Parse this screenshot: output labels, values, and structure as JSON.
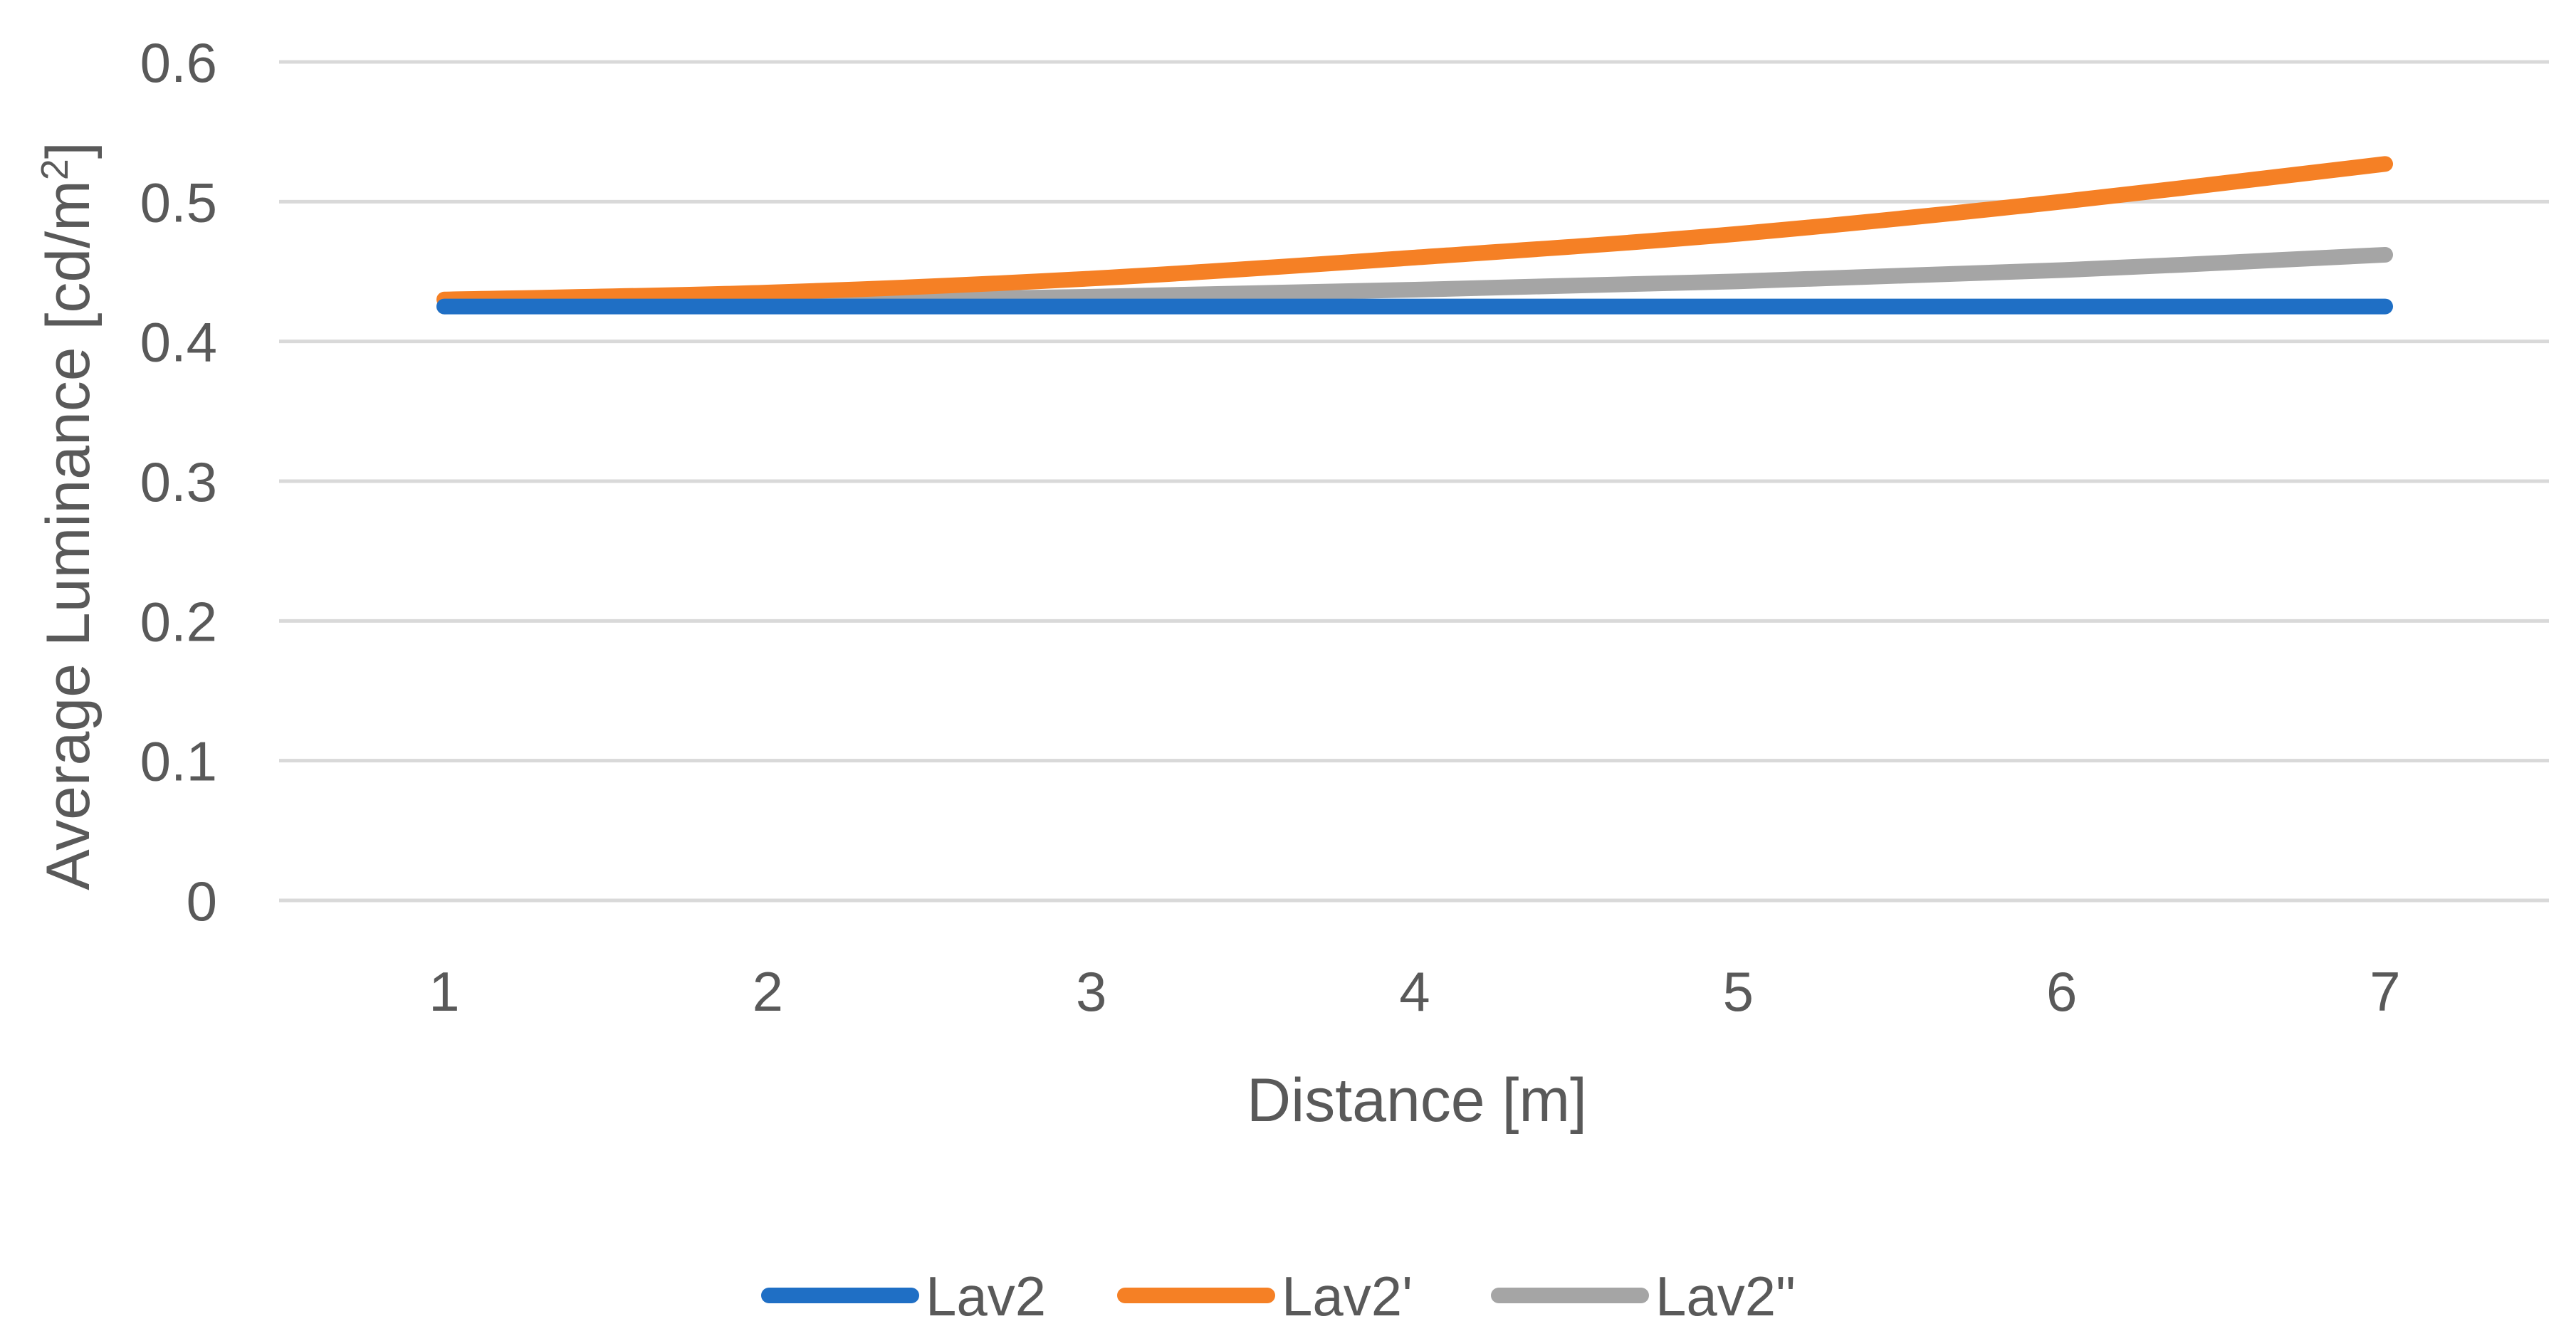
{
  "chart_data": {
    "type": "line",
    "title": "",
    "xlabel": "Distance [m]",
    "ylabel_main": "Average Luminance [cd/m",
    "ylabel_sup": "2",
    "ylabel_end": "]",
    "categories": [
      "1",
      "2",
      "3",
      "4",
      "5",
      "6",
      "7"
    ],
    "x": [
      1,
      2,
      3,
      4,
      5,
      6,
      7
    ],
    "yticks": [
      "0",
      "0.1",
      "0.2",
      "0.3",
      "0.4",
      "0.5",
      "0.6"
    ],
    "ylim": [
      0,
      0.6
    ],
    "grid": true,
    "legend_position": "bottom",
    "series": [
      {
        "name": "Lav2",
        "color": "#1f6fc5",
        "values": [
          0.425,
          0.425,
          0.425,
          0.425,
          0.425,
          0.425,
          0.425
        ]
      },
      {
        "name": "Lav2'",
        "color": "#f58025",
        "values": [
          0.43,
          0.435,
          0.445,
          0.46,
          0.477,
          0.5,
          0.527
        ]
      },
      {
        "name": "Lav2\"",
        "color": "#a5a5a5",
        "values": [
          0.425,
          0.428,
          0.432,
          0.437,
          0.443,
          0.451,
          0.462
        ]
      }
    ]
  }
}
